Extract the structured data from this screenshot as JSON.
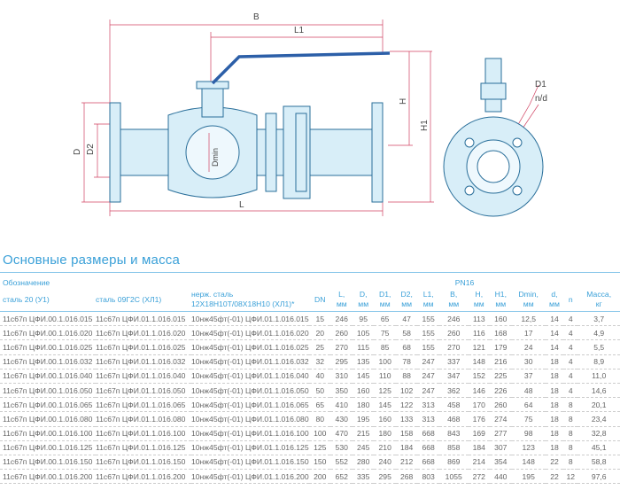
{
  "drawing": {
    "labels": {
      "B": "B",
      "L1": "L1",
      "H": "H",
      "H1": "H1",
      "D": "D",
      "D2": "D2",
      "Dmin": "Dmin",
      "L": "L",
      "D1": "D1",
      "nd": "n/d"
    }
  },
  "title": "Основные размеры и масса",
  "table": {
    "group_header": "Обозначение",
    "pressure_header": "PN16",
    "material_headers": [
      "сталь 20 (У1)",
      "сталь 09Г2С (ХЛ1)",
      "нерж. сталь",
      "12Х18Н10Т/08Х18Н10 (ХЛ1)*"
    ],
    "dim_headers": [
      [
        "DN",
        ""
      ],
      [
        "L,",
        "мм"
      ],
      [
        "D,",
        "мм"
      ],
      [
        "D1,",
        "мм"
      ],
      [
        "D2,",
        "мм"
      ],
      [
        "L1,",
        "мм"
      ],
      [
        "B,",
        "мм"
      ],
      [
        "H,",
        "мм"
      ],
      [
        "H1,",
        "мм"
      ],
      [
        "Dmin,",
        "мм"
      ],
      [
        "d,",
        "мм"
      ],
      [
        "n",
        ""
      ],
      [
        "Масса,",
        "кг"
      ]
    ],
    "rows": [
      [
        "11с67п ЦФИ.00.1.016.015",
        "11с67п ЦФИ.01.1.016.015",
        "10нж45фт(-01) ЦФИ.01.1.016.015",
        "15",
        "246",
        "95",
        "65",
        "47",
        "155",
        "246",
        "113",
        "160",
        "12,5",
        "14",
        "4",
        "3,7"
      ],
      [
        "11с67п ЦФИ.00.1.016.020",
        "11с67п ЦФИ.01.1.016.020",
        "10нж45фт(-01) ЦФИ.01.1.016.020",
        "20",
        "260",
        "105",
        "75",
        "58",
        "155",
        "260",
        "116",
        "168",
        "17",
        "14",
        "4",
        "4,9"
      ],
      [
        "11с67п ЦФИ.00.1.016.025",
        "11с67п ЦФИ.01.1.016.025",
        "10нж45фт(-01) ЦФИ.01.1.016.025",
        "25",
        "270",
        "115",
        "85",
        "68",
        "155",
        "270",
        "121",
        "179",
        "24",
        "14",
        "4",
        "5,5"
      ],
      [
        "11с67п ЦФИ.00.1.016.032",
        "11с67п ЦФИ.01.1.016.032",
        "10нж45фт(-01) ЦФИ.01.1.016.032",
        "32",
        "295",
        "135",
        "100",
        "78",
        "247",
        "337",
        "148",
        "216",
        "30",
        "18",
        "4",
        "8,9"
      ],
      [
        "11с67п ЦФИ.00.1.016.040",
        "11с67п ЦФИ.01.1.016.040",
        "10нж45фт(-01) ЦФИ.01.1.016.040",
        "40",
        "310",
        "145",
        "110",
        "88",
        "247",
        "347",
        "152",
        "225",
        "37",
        "18",
        "4",
        "11,0"
      ],
      [
        "11с67п ЦФИ.00.1.016.050",
        "11с67п ЦФИ.01.1.016.050",
        "10нж45фт(-01) ЦФИ.01.1.016.050",
        "50",
        "350",
        "160",
        "125",
        "102",
        "247",
        "362",
        "146",
        "226",
        "48",
        "18",
        "4",
        "14,6"
      ],
      [
        "11с67п ЦФИ.00.1.016.065",
        "11с67п ЦФИ.01.1.016.065",
        "10нж45фт(-01) ЦФИ.01.1.016.065",
        "65",
        "410",
        "180",
        "145",
        "122",
        "313",
        "458",
        "170",
        "260",
        "64",
        "18",
        "8",
        "20,1"
      ],
      [
        "11с67п ЦФИ.00.1.016.080",
        "11с67п ЦФИ.01.1.016.080",
        "10нж45фт(-01) ЦФИ.01.1.016.080",
        "80",
        "430",
        "195",
        "160",
        "133",
        "313",
        "468",
        "176",
        "274",
        "75",
        "18",
        "8",
        "23,4"
      ],
      [
        "11с67п ЦФИ.00.1.016.100",
        "11с67п ЦФИ.01.1.016.100",
        "10нж45фт(-01) ЦФИ.01.1.016.100",
        "100",
        "470",
        "215",
        "180",
        "158",
        "668",
        "843",
        "169",
        "277",
        "98",
        "18",
        "8",
        "32,8"
      ],
      [
        "11с67п ЦФИ.00.1.016.125",
        "11с67п ЦФИ.01.1.016.125",
        "10нж45фт(-01) ЦФИ.01.1.016.125",
        "125",
        "530",
        "245",
        "210",
        "184",
        "668",
        "858",
        "184",
        "307",
        "123",
        "18",
        "8",
        "45,1"
      ],
      [
        "11с67п ЦФИ.00.1.016.150",
        "11с67п ЦФИ.01.1.016.150",
        "10нж45фт(-01) ЦФИ.01.1.016.150",
        "150",
        "552",
        "280",
        "240",
        "212",
        "668",
        "869",
        "214",
        "354",
        "148",
        "22",
        "8",
        "58,8"
      ],
      [
        "11с67п ЦФИ.00.1.016.200",
        "11с67п ЦФИ.01.1.016.200",
        "10нж45фт(-01) ЦФИ.01.1.016.200",
        "200",
        "652",
        "335",
        "295",
        "268",
        "803",
        "1055",
        "272",
        "440",
        "195",
        "22",
        "12",
        "97,6"
      ]
    ]
  },
  "colors": {
    "accent": "#3aa0d8",
    "valve_fill": "#d8eef8",
    "valve_stroke": "#2a6f9a",
    "handle": "#2c5fa8",
    "dimension": "#d04060"
  }
}
